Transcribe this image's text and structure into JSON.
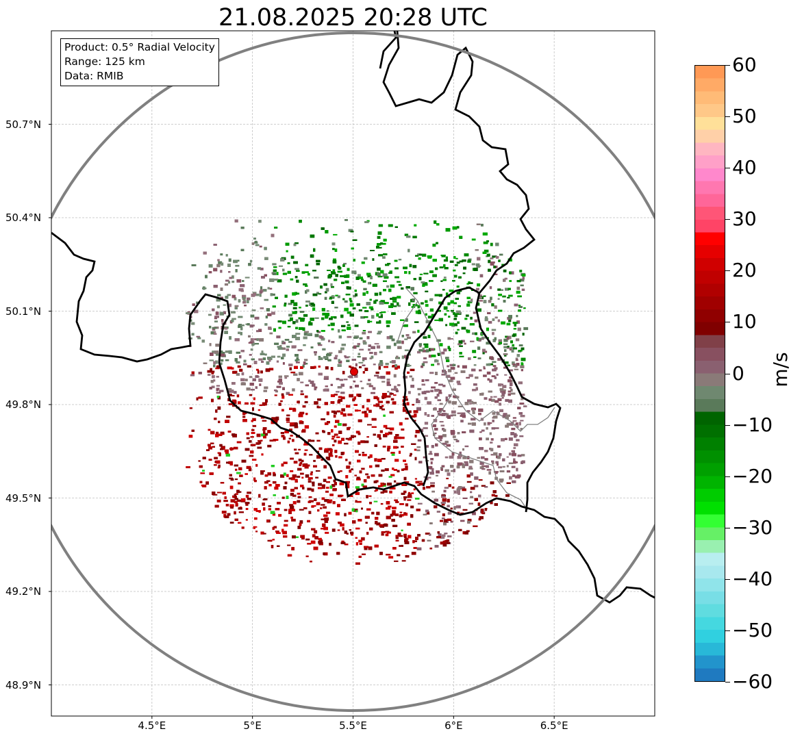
{
  "title": "21.08.2025 20:28 UTC",
  "info_box": {
    "product": "Product: 0.5° Radial Velocity",
    "range": "Range: 125 km",
    "data": "Data: RMIB"
  },
  "latitude_labels": [
    "50.7°N",
    "50.4°N",
    "50.1°N",
    "49.8°N",
    "49.5°N",
    "49.2°N",
    "48.9°N"
  ],
  "longitude_labels": [
    "4.5°E",
    "5°E",
    "5.5°E",
    "6°E",
    "6.5°E"
  ],
  "map": {
    "projection": "lat/lon grid",
    "extent_lon": [
      4.0,
      7.0
    ],
    "extent_lat": [
      48.8,
      51.0
    ],
    "radar_site": {
      "lon": 5.505,
      "lat": 49.915
    },
    "range_ring_km": 125,
    "gridlines": true,
    "colors": {
      "range_ring": "#808080",
      "border": "#000000",
      "inner_border": "#808080",
      "radar_marker": "#e00000",
      "gridline": "#bfbfbf"
    }
  },
  "colorbar": {
    "unit": "m/s",
    "min": -60,
    "max": 60,
    "tick_labels": [
      "60",
      "50",
      "40",
      "30",
      "20",
      "10",
      "0",
      "−10",
      "−20",
      "−30",
      "−40",
      "−50",
      "−60"
    ],
    "colors_top_to_bottom": [
      "#ff9955",
      "#ffaa66",
      "#ffbb77",
      "#ffc888",
      "#ffe099",
      "#ffd0a8",
      "#ffb6c1",
      "#ffa0c8",
      "#ff88cc",
      "#ff77b0",
      "#ff6699",
      "#ff5577",
      "#ff4466",
      "#ff0000",
      "#e60000",
      "#d00000",
      "#c00000",
      "#b00000",
      "#a00000",
      "#900000",
      "#800000",
      "#804048",
      "#885060",
      "#8a6070",
      "#8a7a78",
      "#6f8870",
      "#5a7a5a",
      "#006400",
      "#007000",
      "#008000",
      "#009000",
      "#00a000",
      "#00b400",
      "#00cc00",
      "#00e000",
      "#33ff33",
      "#66f066",
      "#99f0b0",
      "#b8eef0",
      "#a8e8ee",
      "#90e4ea",
      "#78dee6",
      "#60dce0",
      "#45d8e0",
      "#30d0e0",
      "#28b8d8",
      "#2294cc",
      "#1f7ac0"
    ]
  }
}
